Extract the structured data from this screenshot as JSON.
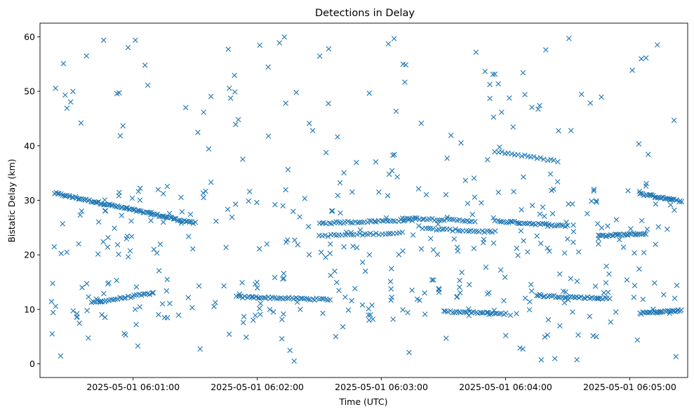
{
  "chart_data": {
    "type": "scatter",
    "title": "Detections in Delay",
    "xlabel": "Time (UTC)",
    "ylabel": "Bistatic Delay (km)",
    "x_axis": "datetime (UTC)",
    "x_range": [
      "2025-05-01 06:00:15",
      "2025-05-01 06:05:28"
    ],
    "ylim": [
      -2.5,
      62.5
    ],
    "grid": false,
    "legend": "none",
    "marker": "x",
    "color": "#1f77b4",
    "x_ticks": [
      "2025-05-01 06:01:00",
      "2025-05-01 06:02:00",
      "2025-05-01 06:03:00",
      "2025-05-01 06:04:00",
      "2025-05-01 06:05:00"
    ],
    "y_ticks": [
      0,
      10,
      20,
      30,
      40,
      50,
      60
    ],
    "tracks": [
      {
        "from": "2025-05-01 06:00:22",
        "to": "2025-05-01 06:01:30",
        "delay_start": 31.3,
        "delay_end": 25.8,
        "points": 90
      },
      {
        "from": "2025-05-01 06:00:40",
        "to": "2025-05-01 06:01:10",
        "delay_start": 11.2,
        "delay_end": 13.0,
        "points": 30
      },
      {
        "from": "2025-05-01 06:01:50",
        "to": "2025-05-01 06:02:35",
        "delay_start": 12.3,
        "delay_end": 11.8,
        "points": 45
      },
      {
        "from": "2025-05-01 06:02:30",
        "to": "2025-05-01 06:03:15",
        "delay_start": 25.8,
        "delay_end": 26.4,
        "points": 40
      },
      {
        "from": "2025-05-01 06:02:30",
        "to": "2025-05-01 06:03:10",
        "delay_start": 23.5,
        "delay_end": 24.0,
        "points": 30
      },
      {
        "from": "2025-05-01 06:03:10",
        "to": "2025-05-01 06:03:45",
        "delay_start": 26.8,
        "delay_end": 26.2,
        "points": 30
      },
      {
        "from": "2025-05-01 06:03:20",
        "to": "2025-05-01 06:03:55",
        "delay_start": 24.8,
        "delay_end": 24.2,
        "points": 28
      },
      {
        "from": "2025-05-01 06:03:30",
        "to": "2025-05-01 06:04:00",
        "delay_start": 9.6,
        "delay_end": 9.2,
        "points": 30
      },
      {
        "from": "2025-05-01 06:03:55",
        "to": "2025-05-01 06:04:30",
        "delay_start": 26.2,
        "delay_end": 25.3,
        "points": 35
      },
      {
        "from": "2025-05-01 06:03:55",
        "to": "2025-05-01 06:04:25",
        "delay_start": 39.0,
        "delay_end": 37.2,
        "points": 20
      },
      {
        "from": "2025-05-01 06:04:15",
        "to": "2025-05-01 06:04:50",
        "delay_start": 12.5,
        "delay_end": 12.0,
        "points": 35
      },
      {
        "from": "2025-05-01 06:04:45",
        "to": "2025-05-01 06:05:08",
        "delay_start": 23.5,
        "delay_end": 23.9,
        "points": 30
      },
      {
        "from": "2025-05-01 06:05:05",
        "to": "2025-05-01 06:05:25",
        "delay_start": 31.2,
        "delay_end": 29.8,
        "points": 30
      },
      {
        "from": "2025-05-01 06:05:05",
        "to": "2025-05-01 06:05:25",
        "delay_start": 9.3,
        "delay_end": 9.8,
        "points": 28
      }
    ],
    "scatter_delay_range": [
      0.5,
      60
    ],
    "scatter_points": 470
  }
}
